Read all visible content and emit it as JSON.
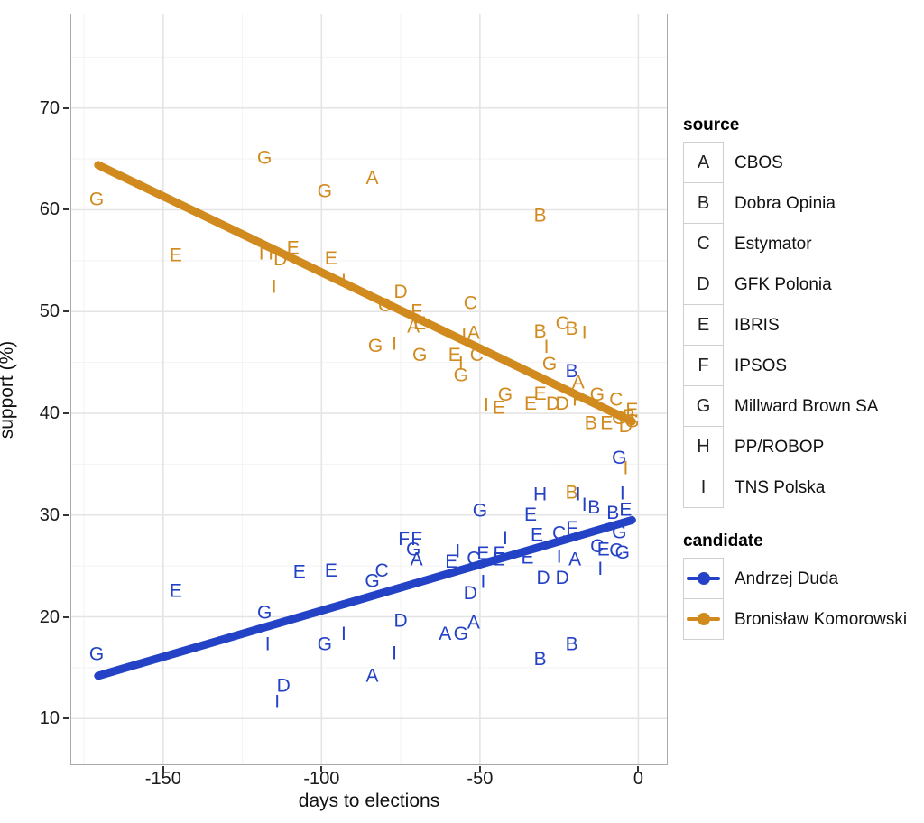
{
  "axes": {
    "x": {
      "label": "days to elections",
      "ticks": [
        -150,
        -100,
        -50,
        0
      ],
      "minor_ticks": [
        -175,
        -125,
        -75,
        -25
      ],
      "range": [
        -179,
        9
      ]
    },
    "y": {
      "label": "support (%)",
      "ticks": [
        10,
        20,
        30,
        40,
        50,
        60,
        70
      ],
      "minor_ticks": [
        15,
        25,
        35,
        45,
        55,
        65,
        75
      ],
      "range": [
        5.5,
        79.2
      ]
    }
  },
  "colors": {
    "duda": "#2442C5",
    "komorowski": "#D18A1E",
    "grid_major": "#e4e4e4",
    "grid_minor": "#f3f3f3",
    "panel_border": "#a9a9a9",
    "axis_text": "#1a1a1a"
  },
  "legend": {
    "source": {
      "title": "source",
      "items": [
        {
          "letter": "A",
          "name": "CBOS"
        },
        {
          "letter": "B",
          "name": "Dobra Opinia"
        },
        {
          "letter": "C",
          "name": "Estymator"
        },
        {
          "letter": "D",
          "name": "GFK Polonia"
        },
        {
          "letter": "E",
          "name": "IBRIS"
        },
        {
          "letter": "F",
          "name": "IPSOS"
        },
        {
          "letter": "G",
          "name": "Millward Brown SA"
        },
        {
          "letter": "H",
          "name": "PP/ROBOP"
        },
        {
          "letter": "I",
          "name": "TNS Polska"
        }
      ]
    },
    "candidate": {
      "title": "candidate",
      "items": [
        {
          "name": "Andrzej Duda",
          "color_key": "duda"
        },
        {
          "name": "Bronisław Komorowski",
          "color_key": "komorowski"
        }
      ]
    }
  },
  "chart_data": {
    "type": "scatter",
    "title": "",
    "xlabel": "days to elections",
    "ylabel": "support (%)",
    "xlim": [
      -179,
      9
    ],
    "ylim": [
      5.5,
      79.2
    ],
    "glyph": "letter of polling source",
    "points_format": [
      "source",
      "days_to_elections",
      "support_pct"
    ],
    "series": [
      {
        "name": "Andrzej Duda",
        "color_key": "duda",
        "points": [
          [
            "G",
            -171,
            16.4
          ],
          [
            "E",
            -146,
            22.6
          ],
          [
            "G",
            -118,
            20.5
          ],
          [
            "I",
            -117,
            17.4
          ],
          [
            "D",
            -112,
            13.3
          ],
          [
            "I",
            -114,
            11.7
          ],
          [
            "E",
            -107,
            24.5
          ],
          [
            "E",
            -97,
            24.6
          ],
          [
            "G",
            -99,
            17.4
          ],
          [
            "I",
            -93,
            18.4
          ],
          [
            "G",
            -84,
            23.6
          ],
          [
            "C",
            -81,
            24.6
          ],
          [
            "D",
            -75,
            19.7
          ],
          [
            "I",
            -77,
            16.5
          ],
          [
            "A",
            -84,
            14.3
          ],
          [
            "F",
            -74,
            27.7
          ],
          [
            "F",
            -70,
            27.7
          ],
          [
            "G",
            -71,
            26.7
          ],
          [
            "A",
            -70,
            25.7
          ],
          [
            "A",
            -61,
            18.4
          ],
          [
            "G",
            -56,
            18.4
          ],
          [
            "A",
            -52,
            19.5
          ],
          [
            "E",
            -59,
            25.5
          ],
          [
            "I",
            -57,
            26.5
          ],
          [
            "C",
            -52,
            25.8
          ],
          [
            "D",
            -53,
            22.4
          ],
          [
            "I",
            -49,
            23.5
          ],
          [
            "G",
            -50,
            30.5
          ],
          [
            "E",
            -49,
            26.3
          ],
          [
            "F",
            -44,
            26.3
          ],
          [
            "I",
            -42,
            27.8
          ],
          [
            "E",
            -44,
            25.7
          ],
          [
            "E",
            -35,
            25.9
          ],
          [
            "E",
            -34,
            30.1
          ],
          [
            "H",
            -31,
            32.1
          ],
          [
            "E",
            -32,
            28.1
          ],
          [
            "C",
            -25,
            28.3
          ],
          [
            "F",
            -21,
            28.8
          ],
          [
            "I",
            -25,
            26.0
          ],
          [
            "A",
            -20,
            25.7
          ],
          [
            "D",
            -30,
            23.9
          ],
          [
            "D",
            -24,
            23.9
          ],
          [
            "B",
            -31,
            15.9
          ],
          [
            "B",
            -21,
            17.4
          ],
          [
            "B",
            -21,
            44.2
          ],
          [
            "I",
            -19,
            32.1
          ],
          [
            "I",
            -17,
            31.1
          ],
          [
            "B",
            -14,
            30.8
          ],
          [
            "B",
            -8,
            30.3
          ],
          [
            "I",
            -5,
            32.2
          ],
          [
            "E",
            -4,
            30.6
          ],
          [
            "G",
            -6,
            28.4
          ],
          [
            "C",
            -13,
            27.0
          ],
          [
            "E",
            -11,
            26.7
          ],
          [
            "C",
            -7,
            26.6
          ],
          [
            "G",
            -5,
            26.4
          ],
          [
            "I",
            -12,
            24.8
          ],
          [
            "G",
            -6,
            35.7
          ]
        ]
      },
      {
        "name": "Bronisław Komorowski",
        "color_key": "komorowski",
        "points": [
          [
            "G",
            -171,
            61.1
          ],
          [
            "E",
            -146,
            55.6
          ],
          [
            "G",
            -118,
            65.2
          ],
          [
            "I",
            -119,
            55.8
          ],
          [
            "I",
            -116,
            55.8
          ],
          [
            "D",
            -113,
            55.2
          ],
          [
            "E",
            -109,
            56.3
          ],
          [
            "I",
            -115,
            52.5
          ],
          [
            "E",
            -97,
            55.3
          ],
          [
            "I",
            -93,
            53.1
          ],
          [
            "G",
            -99,
            61.9
          ],
          [
            "A",
            -84,
            63.2
          ],
          [
            "C",
            -80,
            50.7
          ],
          [
            "D",
            -75,
            52.0
          ],
          [
            "F",
            -70,
            50.1
          ],
          [
            "A",
            -71,
            48.6
          ],
          [
            "E",
            -69,
            48.9
          ],
          [
            "G",
            -83,
            46.7
          ],
          [
            "I",
            -77,
            46.9
          ],
          [
            "G",
            -69,
            45.8
          ],
          [
            "I",
            -55,
            47.8
          ],
          [
            "A",
            -52,
            48.0
          ],
          [
            "C",
            -53,
            50.9
          ],
          [
            "E",
            -58,
            45.8
          ],
          [
            "I",
            -56,
            45.0
          ],
          [
            "C",
            -51,
            45.8
          ],
          [
            "G",
            -56,
            43.8
          ],
          [
            "G",
            -42,
            41.9
          ],
          [
            "I",
            -48,
            40.9
          ],
          [
            "E",
            -44,
            40.6
          ],
          [
            "B",
            -31,
            59.5
          ],
          [
            "B",
            -31,
            48.1
          ],
          [
            "C",
            -24,
            48.9
          ],
          [
            "B",
            -21,
            48.4
          ],
          [
            "I",
            -17,
            48.0
          ],
          [
            "I",
            -29,
            46.6
          ],
          [
            "G",
            -28,
            44.9
          ],
          [
            "A",
            -19,
            43.1
          ],
          [
            "E",
            -34,
            41.0
          ],
          [
            "E",
            -31,
            42.0
          ],
          [
            "D",
            -27,
            41.0
          ],
          [
            "D",
            -24,
            41.0
          ],
          [
            "F",
            -19,
            41.4
          ],
          [
            "G",
            -13,
            41.9
          ],
          [
            "C",
            -7,
            41.4
          ],
          [
            "E",
            -2,
            40.4
          ],
          [
            "B",
            -15,
            39.1
          ],
          [
            "E",
            -10,
            39.1
          ],
          [
            "G",
            -6,
            39.6
          ],
          [
            "D",
            -4,
            38.8
          ],
          [
            "B",
            -3,
            39.8
          ],
          [
            "G",
            -2,
            39.3
          ],
          [
            "B",
            -21,
            32.3
          ],
          [
            "I",
            -4,
            34.7
          ]
        ]
      }
    ],
    "trend_lines": [
      {
        "name": "Andrzej Duda",
        "color_key": "duda",
        "x1": -170.5,
        "y1": 14.2,
        "x2": -2,
        "y2": 29.5
      },
      {
        "name": "Bronisław Komorowski",
        "color_key": "komorowski",
        "x1": -170.5,
        "y1": 64.4,
        "x2": -2,
        "y2": 39.2
      }
    ],
    "legend_position": "right",
    "grid": true
  }
}
